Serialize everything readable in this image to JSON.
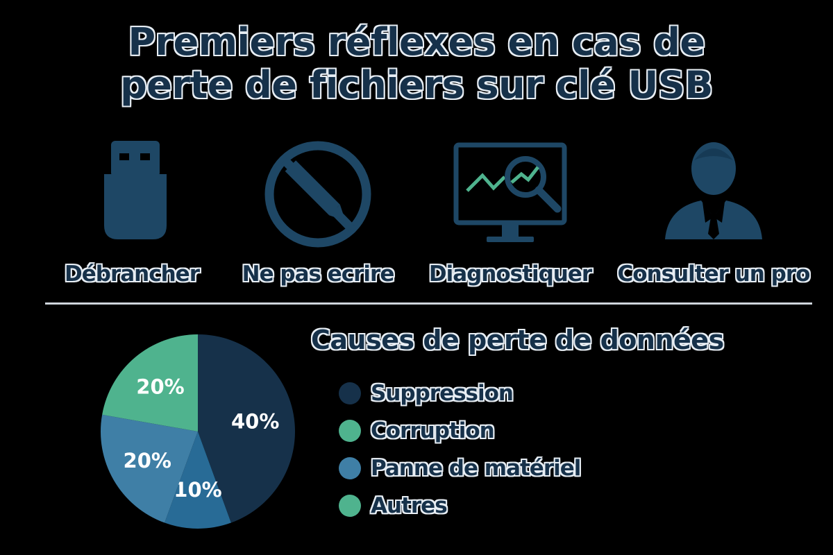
{
  "title": {
    "line1": "Premiers réflexes en cas de",
    "line2": "perte de fichiers sur clé USB"
  },
  "steps": [
    {
      "icon": "usb-drive-icon",
      "label": "Débrancher"
    },
    {
      "icon": "no-writing-icon",
      "label": "Ne pas ecrire"
    },
    {
      "icon": "diagnostic-monitor-icon",
      "label": "Diagnostiquer"
    },
    {
      "icon": "professional-person-icon",
      "label": "Consulter un pro"
    }
  ],
  "colors": {
    "navy": "#16314a",
    "green": "#4fb38e",
    "light_blue": "#3f7fa6",
    "mid_blue": "#286b96",
    "icon": "#1e4765",
    "chart_line": "#4fb38e"
  },
  "chart_data": {
    "type": "pie",
    "title": "Causes  de perte de données",
    "slices": [
      {
        "label": "40%",
        "value": 40,
        "color": "#16314a"
      },
      {
        "label": "10%",
        "value": 10,
        "color": "#286b96"
      },
      {
        "label": "20%",
        "value": 20,
        "color": "#3f7fa6"
      },
      {
        "label": "20%",
        "value": 20,
        "color": "#4fb38e"
      }
    ],
    "legend": [
      {
        "name": "Suppression",
        "color": "#16314a"
      },
      {
        "name": "Corruption",
        "color": "#4fb38e"
      },
      {
        "name": "Panne de matériel",
        "color": "#3f7fa6"
      },
      {
        "name": "Autres",
        "color": "#4fb38e"
      }
    ],
    "legend_position": "right"
  }
}
